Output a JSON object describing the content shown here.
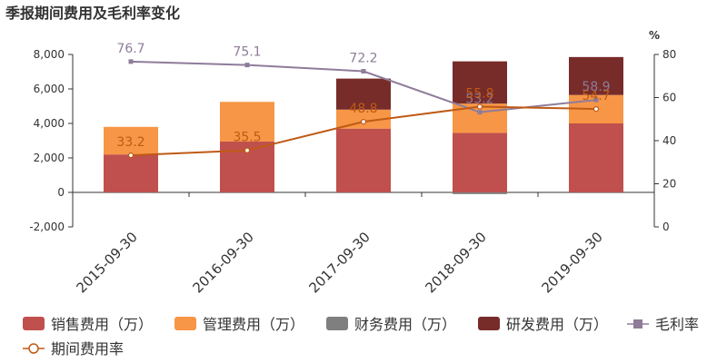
{
  "chart_data": {
    "type": "bar",
    "title": "季报期间费用及毛利率变化",
    "categories": [
      "2015-09-30",
      "2016-09-30",
      "2017-09-30",
      "2018-09-30",
      "2019-09-30"
    ],
    "series": [
      {
        "name": "销售费用（万）",
        "type": "bar",
        "axis": "left",
        "color": "#c0504d",
        "values": [
          2200,
          2950,
          3700,
          3450,
          4000
        ]
      },
      {
        "name": "管理费用（万）",
        "type": "bar",
        "axis": "left",
        "color": "#f79646",
        "values": [
          1600,
          2300,
          1100,
          1700,
          1650
        ]
      },
      {
        "name": "财务费用（万）",
        "type": "bar",
        "axis": "left",
        "color": "#7f7f7f",
        "values": [
          0,
          0,
          0,
          -100,
          0
        ]
      },
      {
        "name": "研发费用（万）",
        "type": "bar",
        "axis": "left",
        "color": "#772c2a",
        "values": [
          0,
          0,
          1800,
          2450,
          2200
        ]
      },
      {
        "name": "毛利率",
        "type": "line",
        "axis": "right",
        "color": "#8e7c99",
        "marker": "square",
        "values": [
          76.7,
          75.1,
          72.2,
          53.2,
          58.9
        ]
      },
      {
        "name": "期间费用率",
        "type": "line",
        "axis": "right",
        "color": "#bf5a15",
        "marker": "circle",
        "values": [
          33.2,
          35.5,
          48.8,
          55.8,
          54.7
        ]
      }
    ],
    "y_left": {
      "min": -2000,
      "max": 8000,
      "ticks": [
        "-2,000",
        "0",
        "2,000",
        "4,000",
        "6,000",
        "8,000"
      ]
    },
    "y_right": {
      "min": 0,
      "max": 80,
      "unit": "%",
      "ticks": [
        "0",
        "20",
        "40",
        "60",
        "80"
      ]
    },
    "legend_position": "bottom",
    "grid": false
  }
}
